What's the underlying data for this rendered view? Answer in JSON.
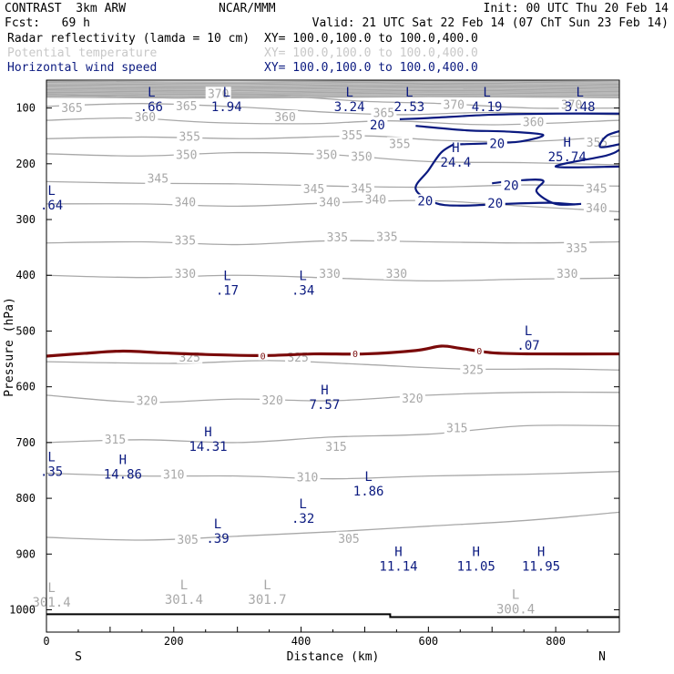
{
  "header": {
    "model": "CONTRAST  3km ARW",
    "center": "NCAR/MMM",
    "init": "Init: 00 UTC Thu 20 Feb 14",
    "fcst": "Fcst:   69 h",
    "valid": "Valid: 21 UTC Sat 22 Feb 14 (07 ChT Sun 23 Feb 14)"
  },
  "fields": [
    {
      "name": "Radar reflectivity (lamda = 10 cm)",
      "xy": "XY= 100.0,100.0 to 100.0,400.0",
      "color": "#000000"
    },
    {
      "name": "Potential temperature",
      "xy": "XY= 100.0,100.0 to 100.0,400.0",
      "color": "#c8c8c8"
    },
    {
      "name": "Horizontal wind speed",
      "xy": "XY= 100.0,100.0 to 100.0,400.0",
      "color": "#0b1a80"
    }
  ],
  "chart_data": {
    "type": "cross-section",
    "xlabel": "Distance (km)",
    "ylabel": "Pressure (hPa)",
    "xlim": [
      0,
      900
    ],
    "ylim": [
      1040,
      50
    ],
    "x_ticks": [
      0,
      200,
      400,
      600,
      800
    ],
    "y_ticks": [
      100,
      200,
      300,
      400,
      500,
      600,
      700,
      800,
      900,
      1000
    ],
    "end_labels": {
      "left": "S",
      "right": "N"
    },
    "colors": {
      "theta": "#a8a8a8",
      "wind": "#0b1a80",
      "reflectivity": "#7a0a0a",
      "ground": "#000000",
      "axis": "#000000"
    },
    "theta_contours": [
      {
        "value": 370,
        "points": [
          [
            0,
            75
          ],
          [
            200,
            82
          ],
          [
            350,
            78
          ],
          [
            500,
            88
          ],
          [
            620,
            92
          ],
          [
            760,
            100
          ],
          [
            900,
            100
          ]
        ],
        "labels": [
          [
            270,
            75
          ],
          [
            640,
            95
          ],
          [
            825,
            95
          ]
        ]
      },
      {
        "value": 365,
        "points": [
          [
            0,
            97
          ],
          [
            150,
            92
          ],
          [
            300,
            98
          ],
          [
            450,
            108
          ],
          [
            560,
            112
          ],
          [
            700,
            108
          ],
          [
            900,
            112
          ]
        ],
        "labels": [
          [
            40,
            101
          ],
          [
            220,
            97
          ],
          [
            530,
            110
          ]
        ]
      },
      {
        "value": 360,
        "points": [
          [
            0,
            122
          ],
          [
            130,
            118
          ],
          [
            260,
            126
          ],
          [
            420,
            128
          ],
          [
            540,
            123
          ],
          [
            700,
            130
          ],
          [
            900,
            122
          ]
        ],
        "labels": [
          [
            155,
            117
          ],
          [
            375,
            117
          ],
          [
            765,
            126
          ]
        ]
      },
      {
        "value": 355,
        "points": [
          [
            0,
            155
          ],
          [
            150,
            152
          ],
          [
            320,
            155
          ],
          [
            500,
            150
          ],
          [
            620,
            158
          ],
          [
            760,
            160
          ],
          [
            900,
            150
          ]
        ],
        "labels": [
          [
            225,
            152
          ],
          [
            480,
            150
          ],
          [
            555,
            165
          ],
          [
            865,
            163
          ]
        ]
      },
      {
        "value": 350,
        "points": [
          [
            0,
            182
          ],
          [
            150,
            186
          ],
          [
            300,
            180
          ],
          [
            450,
            184
          ],
          [
            600,
            196
          ],
          [
            750,
            198
          ],
          [
            900,
            202
          ]
        ],
        "labels": [
          [
            220,
            185
          ],
          [
            440,
            185
          ],
          [
            495,
            188
          ]
        ]
      },
      {
        "value": 345,
        "points": [
          [
            0,
            232
          ],
          [
            150,
            235
          ],
          [
            300,
            236
          ],
          [
            450,
            240
          ],
          [
            600,
            242
          ],
          [
            750,
            238
          ],
          [
            900,
            240
          ]
        ],
        "labels": [
          [
            175,
            227
          ],
          [
            420,
            246
          ],
          [
            495,
            245
          ],
          [
            864,
            245
          ]
        ]
      },
      {
        "value": 340,
        "points": [
          [
            0,
            272
          ],
          [
            150,
            272
          ],
          [
            300,
            276
          ],
          [
            450,
            270
          ],
          [
            600,
            266
          ],
          [
            750,
            276
          ],
          [
            900,
            286
          ]
        ],
        "labels": [
          [
            218,
            270
          ],
          [
            445,
            270
          ],
          [
            517,
            265
          ],
          [
            864,
            280
          ]
        ]
      },
      {
        "value": 335,
        "points": [
          [
            0,
            342
          ],
          [
            150,
            340
          ],
          [
            300,
            345
          ],
          [
            450,
            338
          ],
          [
            600,
            340
          ],
          [
            750,
            342
          ],
          [
            900,
            340
          ]
        ],
        "labels": [
          [
            218,
            338
          ],
          [
            457,
            333
          ],
          [
            535,
            332
          ],
          [
            833,
            352
          ]
        ]
      },
      {
        "value": 330,
        "points": [
          [
            0,
            400
          ],
          [
            150,
            404
          ],
          [
            300,
            400
          ],
          [
            450,
            405
          ],
          [
            600,
            410
          ],
          [
            750,
            407
          ],
          [
            900,
            405
          ]
        ],
        "labels": [
          [
            218,
            398
          ],
          [
            445,
            398
          ],
          [
            550,
            398
          ],
          [
            818,
            398
          ]
        ]
      },
      {
        "value": 325,
        "points": [
          [
            0,
            555
          ],
          [
            200,
            558
          ],
          [
            350,
            553
          ],
          [
            500,
            560
          ],
          [
            650,
            568
          ],
          [
            800,
            568
          ],
          [
            900,
            570
          ]
        ],
        "labels": [
          [
            225,
            548
          ],
          [
            395,
            548
          ],
          [
            670,
            570
          ]
        ]
      },
      {
        "value": 320,
        "points": [
          [
            0,
            615
          ],
          [
            150,
            628
          ],
          [
            300,
            622
          ],
          [
            450,
            625
          ],
          [
            600,
            615
          ],
          [
            750,
            610
          ],
          [
            900,
            610
          ]
        ],
        "labels": [
          [
            158,
            626
          ],
          [
            355,
            625
          ],
          [
            575,
            622
          ]
        ]
      },
      {
        "value": 315,
        "points": [
          [
            0,
            700
          ],
          [
            150,
            695
          ],
          [
            300,
            700
          ],
          [
            450,
            690
          ],
          [
            600,
            685
          ],
          [
            750,
            670
          ],
          [
            900,
            670
          ]
        ],
        "labels": [
          [
            108,
            695
          ],
          [
            455,
            708
          ],
          [
            645,
            675
          ]
        ]
      },
      {
        "value": 310,
        "points": [
          [
            0,
            755
          ],
          [
            150,
            760
          ],
          [
            300,
            760
          ],
          [
            450,
            765
          ],
          [
            600,
            760
          ],
          [
            750,
            757
          ],
          [
            900,
            752
          ]
        ],
        "labels": [
          [
            200,
            758
          ],
          [
            410,
            763
          ]
        ]
      },
      {
        "value": 305,
        "points": [
          [
            0,
            870
          ],
          [
            150,
            875
          ],
          [
            300,
            868
          ],
          [
            450,
            860
          ],
          [
            600,
            850
          ],
          [
            750,
            840
          ],
          [
            900,
            825
          ]
        ],
        "labels": [
          [
            222,
            875
          ],
          [
            475,
            873
          ]
        ]
      }
    ],
    "wind_contours": [
      {
        "value": 20,
        "points": [
          [
            555,
            120
          ],
          [
            600,
            118
          ],
          [
            700,
            112
          ],
          [
            800,
            110
          ],
          [
            900,
            110
          ]
        ]
      },
      {
        "value": 20,
        "points": [
          [
            580,
            132
          ],
          [
            660,
            140
          ],
          [
            720,
            142
          ],
          [
            780,
            148
          ],
          [
            745,
            160
          ],
          [
            700,
            163
          ],
          [
            650,
            165
          ]
        ],
        "labels": [
          [
            708,
            165
          ]
        ]
      },
      {
        "value": 20,
        "points": [
          [
            640,
            165
          ],
          [
            620,
            180
          ],
          [
            600,
            212
          ],
          [
            580,
            245
          ],
          [
            610,
            270
          ],
          [
            650,
            275
          ],
          [
            720,
            272
          ],
          [
            790,
            270
          ],
          [
            830,
            273
          ]
        ],
        "labels": [
          [
            595,
            268
          ],
          [
            705,
            272
          ]
        ]
      },
      {
        "value": 20,
        "points": [
          [
            700,
            235
          ],
          [
            740,
            230
          ],
          [
            780,
            230
          ],
          [
            770,
            250
          ],
          [
            800,
            272
          ],
          [
            840,
            272
          ]
        ],
        "labels": [
          [
            730,
            240
          ]
        ]
      },
      {
        "value": 20,
        "points": [
          [
            900,
            175
          ],
          [
            880,
            185
          ],
          [
            800,
            205
          ],
          [
            900,
            205
          ]
        ],
        "labels": [
          [
            520,
            132
          ]
        ]
      },
      {
        "value": 20,
        "points": [
          [
            905,
            140
          ],
          [
            880,
            150
          ],
          [
            870,
            170
          ],
          [
            900,
            165
          ]
        ]
      }
    ],
    "reflectivity_contours": [
      {
        "value": 0,
        "points": [
          [
            0,
            545
          ],
          [
            60,
            540
          ],
          [
            120,
            536
          ],
          [
            180,
            539
          ],
          [
            250,
            542
          ],
          [
            340,
            544
          ],
          [
            420,
            541
          ],
          [
            500,
            541
          ],
          [
            580,
            535
          ],
          [
            620,
            527
          ],
          [
            650,
            531
          ],
          [
            700,
            539
          ],
          [
            760,
            541
          ],
          [
            900,
            541
          ]
        ],
        "labels": [
          [
            340,
            544
          ],
          [
            485,
            540
          ],
          [
            680,
            535
          ]
        ]
      }
    ],
    "ground": {
      "points": [
        [
          0,
          1008
        ],
        [
          540,
          1008
        ],
        [
          540,
          1013
        ],
        [
          900,
          1013
        ]
      ]
    },
    "extrema": [
      {
        "type": "L",
        "value": ".66",
        "x": 165,
        "y": 86,
        "color": "navy"
      },
      {
        "type": "L",
        "value": "1.94",
        "x": 283,
        "y": 86,
        "color": "navy"
      },
      {
        "type": "L",
        "value": "3.24",
        "x": 476,
        "y": 86,
        "color": "navy"
      },
      {
        "type": "L",
        "value": "2.53",
        "x": 570,
        "y": 86,
        "color": "navy"
      },
      {
        "type": "L",
        "value": "4.19",
        "x": 692,
        "y": 86,
        "color": "navy"
      },
      {
        "type": "L",
        "value": "3.48",
        "x": 838,
        "y": 86,
        "color": "navy"
      },
      {
        "type": "H",
        "value": "24.4",
        "x": 643,
        "y": 186,
        "color": "navy"
      },
      {
        "type": "H",
        "value": "25.74",
        "x": 818,
        "y": 176,
        "color": "navy"
      },
      {
        "type": "L",
        "value": ".64",
        "x": 8,
        "y": 262,
        "color": "navy"
      },
      {
        "type": "L",
        "value": ".17",
        "x": 284,
        "y": 415,
        "color": "navy"
      },
      {
        "type": "L",
        "value": ".34",
        "x": 403,
        "y": 415,
        "color": "navy"
      },
      {
        "type": "L",
        "value": ".07",
        "x": 757,
        "y": 514,
        "color": "navy"
      },
      {
        "type": "H",
        "value": "7.57",
        "x": 437,
        "y": 620,
        "color": "navy"
      },
      {
        "type": "H",
        "value": "14.31",
        "x": 254,
        "y": 695,
        "color": "navy"
      },
      {
        "type": "L",
        "value": ".35",
        "x": 8,
        "y": 740,
        "color": "navy"
      },
      {
        "type": "H",
        "value": "14.86",
        "x": 120,
        "y": 745,
        "color": "navy"
      },
      {
        "type": "L",
        "value": "1.86",
        "x": 506,
        "y": 775,
        "color": "navy"
      },
      {
        "type": "L",
        "value": ".32",
        "x": 403,
        "y": 824,
        "color": "navy"
      },
      {
        "type": "L",
        "value": ".39",
        "x": 269,
        "y": 860,
        "color": "navy"
      },
      {
        "type": "H",
        "value": "11.14",
        "x": 553,
        "y": 910,
        "color": "navy"
      },
      {
        "type": "H",
        "value": "11.05",
        "x": 675,
        "y": 910,
        "color": "navy"
      },
      {
        "type": "H",
        "value": "11.95",
        "x": 777,
        "y": 910,
        "color": "navy"
      },
      {
        "type": "L",
        "value": "301.4",
        "x": 8,
        "y": 975,
        "color": "gray"
      },
      {
        "type": "L",
        "value": "301.4",
        "x": 216,
        "y": 970,
        "color": "gray"
      },
      {
        "type": "L",
        "value": "301.7",
        "x": 347,
        "y": 970,
        "color": "gray"
      },
      {
        "type": "L",
        "value": "300.4",
        "x": 737,
        "y": 987,
        "color": "gray"
      }
    ]
  }
}
